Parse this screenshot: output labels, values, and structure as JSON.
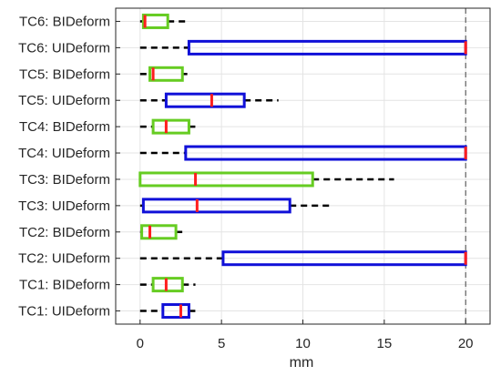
{
  "chart_data": {
    "type": "boxplot",
    "orientation": "horizontal",
    "title": "",
    "xlabel": "mm",
    "ylabel": "",
    "xlim": [
      -1.5,
      21.5
    ],
    "xticks": [
      0,
      5,
      10,
      15,
      20
    ],
    "grid": true,
    "reference_line": {
      "x": 20,
      "style": "dashed",
      "color": "#444444"
    },
    "colors": {
      "BIDeform": "#66cc22",
      "UIDeform": "#1010d8",
      "median": "#ff1e1e",
      "whisker": "#000000"
    },
    "categories": [
      "TC6: BIDeform",
      "TC6: UIDeform",
      "TC5: BIDeform",
      "TC5: UIDeform",
      "TC4: BIDeform",
      "TC4: UIDeform",
      "TC3: BIDeform",
      "TC3: UIDeform",
      "TC2: BIDeform",
      "TC2: UIDeform",
      "TC1: BIDeform",
      "TC1: UIDeform"
    ],
    "boxes": [
      {
        "label": "TC6: BIDeform",
        "group": "BIDeform",
        "min": 0.0,
        "q1": 0.2,
        "median": 0.3,
        "q3": 1.7,
        "max": 3.0
      },
      {
        "label": "TC6: UIDeform",
        "group": "UIDeform",
        "min": 0.0,
        "q1": 3.0,
        "median": 20.0,
        "q3": 20.0,
        "max": 20.0
      },
      {
        "label": "TC5: BIDeform",
        "group": "BIDeform",
        "min": 0.0,
        "q1": 0.6,
        "median": 0.8,
        "q3": 2.6,
        "max": 2.9
      },
      {
        "label": "TC5: UIDeform",
        "group": "UIDeform",
        "min": 0.0,
        "q1": 1.6,
        "median": 4.4,
        "q3": 6.4,
        "max": 8.5
      },
      {
        "label": "TC4: BIDeform",
        "group": "BIDeform",
        "min": 0.0,
        "q1": 0.8,
        "median": 1.6,
        "q3": 3.0,
        "max": 3.4
      },
      {
        "label": "TC4: UIDeform",
        "group": "UIDeform",
        "min": 0.0,
        "q1": 2.8,
        "median": 20.0,
        "q3": 20.0,
        "max": 20.0
      },
      {
        "label": "TC3: BIDeform",
        "group": "BIDeform",
        "min": 0.0,
        "q1": 0.0,
        "median": 3.4,
        "q3": 10.6,
        "max": 15.6
      },
      {
        "label": "TC3: UIDeform",
        "group": "UIDeform",
        "min": 0.0,
        "q1": 0.2,
        "median": 3.5,
        "q3": 9.2,
        "max": 11.7
      },
      {
        "label": "TC2: BIDeform",
        "group": "BIDeform",
        "min": 0.0,
        "q1": 0.1,
        "median": 0.6,
        "q3": 2.2,
        "max": 2.8
      },
      {
        "label": "TC2: UIDeform",
        "group": "UIDeform",
        "min": 0.0,
        "q1": 5.1,
        "median": 20.0,
        "q3": 20.0,
        "max": 20.0
      },
      {
        "label": "TC1: BIDeform",
        "group": "BIDeform",
        "min": 0.0,
        "q1": 0.8,
        "median": 1.6,
        "q3": 2.6,
        "max": 3.4
      },
      {
        "label": "TC1: UIDeform",
        "group": "UIDeform",
        "min": 0.0,
        "q1": 1.4,
        "median": 2.5,
        "q3": 3.0,
        "max": 3.4
      }
    ]
  }
}
